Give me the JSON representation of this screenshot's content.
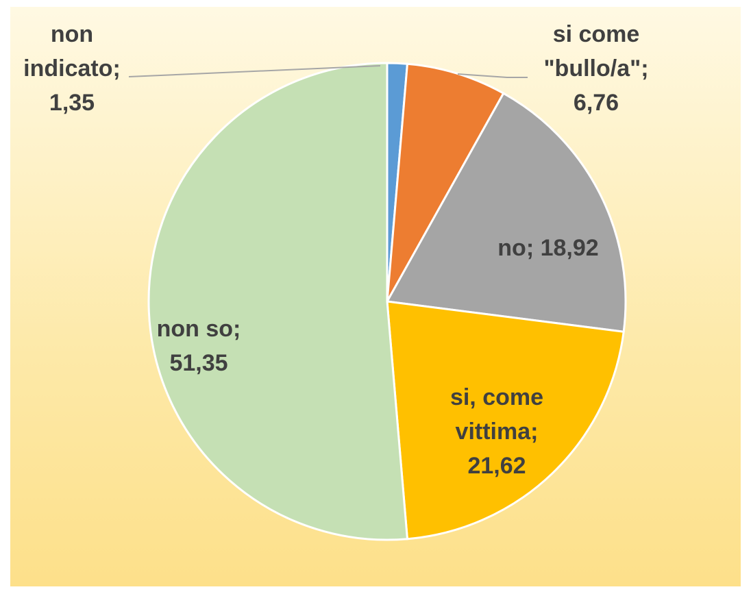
{
  "chart_data": {
    "type": "pie",
    "categories": [
      "non indicato",
      "si come \"bullo/a\"",
      "no",
      "si, come vittima",
      "non so"
    ],
    "values": [
      1.35,
      6.76,
      18.92,
      21.62,
      51.35
    ],
    "value_labels": [
      "1,35",
      "6,76",
      "18,92",
      "21,62",
      "51,35"
    ],
    "label_separator": ";",
    "colors": [
      "#5b9bd5",
      "#ed7d31",
      "#a5a5a5",
      "#ffc000",
      "#c5e0b4"
    ]
  }
}
